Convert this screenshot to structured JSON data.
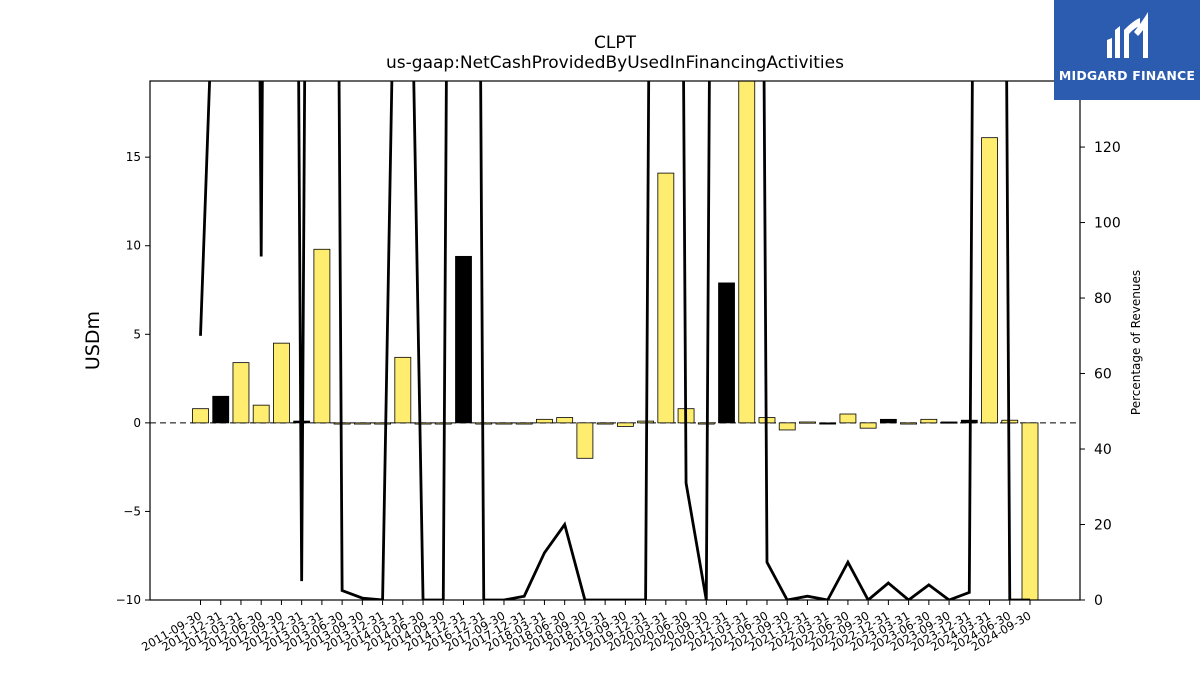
{
  "title": "CLPT",
  "subtitle": "us-gaap:NetCashProvidedByUsedInFinancingActivities",
  "logo_text": "MIDGARD FINANCE",
  "chart_data": {
    "type": "bar",
    "ylabel": "USDm",
    "y2label": "Percentage of Revenues",
    "ylim": [
      -10,
      19.3
    ],
    "y2lim": [
      0,
      137.5
    ],
    "yticks": [
      -10,
      -5,
      0,
      5,
      10,
      15
    ],
    "y2ticks": [
      0,
      20,
      40,
      60,
      80,
      100,
      120
    ],
    "colors": {
      "positive": "#ffed6f",
      "negative": "#000000",
      "line": "#000000"
    },
    "categories": [
      "2011-09-30",
      "2011-12-31",
      "2012-03-31",
      "2012-06-30",
      "2012-09-30",
      "2012-12-31",
      "2013-03-31",
      "2013-06-30",
      "2013-09-30",
      "2013-12-31",
      "2014-03-31",
      "2014-06-30",
      "2014-09-30",
      "2014-12-31",
      "2016-12-31",
      "2017-09-30",
      "2017-12-31",
      "2018-03-31",
      "2018-06-30",
      "2018-09-30",
      "2018-12-31",
      "2019-09-30",
      "2019-12-31",
      "2020-03-31",
      "2020-06-30",
      "2020-09-30",
      "2020-12-31",
      "2021-03-31",
      "2021-06-30",
      "2021-09-30",
      "2021-12-31",
      "2022-03-31",
      "2022-06-30",
      "2022-09-30",
      "2022-12-31",
      "2023-03-31",
      "2023-06-30",
      "2023-09-30",
      "2023-12-31",
      "2024-03-31",
      "2024-06-30",
      "2024-09-30"
    ],
    "values": [
      0.8,
      1.5,
      3.4,
      1.0,
      4.5,
      0.1,
      9.8,
      0,
      0,
      0,
      3.7,
      0,
      0,
      9.4,
      0,
      0,
      0,
      0.2,
      0.3,
      -2.0,
      0,
      -0.2,
      0.1,
      14.1,
      0.8,
      0,
      7.9,
      19.8,
      0.3,
      -0.4,
      0.05,
      0,
      0.5,
      -0.3,
      0.2,
      0,
      0.2,
      0.05,
      0.15,
      16.1,
      0.15,
      -10.5
    ],
    "pct_of_revenues": [
      70,
      220,
      900,
      91,
      900,
      5,
      900,
      2.5,
      0.5,
      0,
      300,
      0,
      0,
      900,
      0,
      0,
      1,
      12.5,
      20,
      0,
      0,
      0,
      0,
      900,
      31,
      0,
      900,
      900,
      10,
      0,
      1,
      0,
      10,
      0,
      4.5,
      0,
      4,
      0,
      2,
      900,
      0,
      0
    ]
  }
}
